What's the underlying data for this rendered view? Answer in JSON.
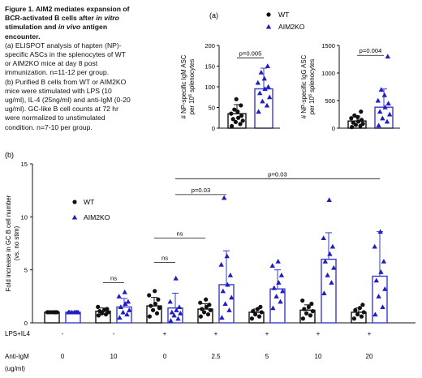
{
  "caption": {
    "title_lines": [
      "Figure 1. AIM2 mediates expansion of",
      "BCR-activated B cells after ",
      "in vitro",
      " stimulation and ",
      "in vivo",
      " antigen",
      "encounter."
    ],
    "lines": [
      "(a) ELISPOT analysis of hapten (NP)-",
      "specific ASCs in the splenocytes of WT",
      "or AIM2KO mice at day 8 post",
      "immunization. n=11-12 per group.",
      "(b) Purified B cells from WT or AIM2KO",
      "mice were stimulated with LPS (10",
      "ug/ml), IL-4 (25ng/ml) and anti-IgM (0-20",
      "ug/ml). GC-like B cell counts at 72 hr",
      "were normalized to unstimulated",
      "condition. n=7-10 per group."
    ]
  },
  "colors": {
    "wt": "#111111",
    "ko": "#1f1fbf",
    "bar": "#3a3acc"
  },
  "chart_data": [
    {
      "id": "a-igm",
      "type": "bar",
      "panel_label": "(a)",
      "ylabel_lines": [
        "# NP-specific IgM ASC",
        "per 10^6 splenocytes"
      ],
      "ylim": [
        0,
        200
      ],
      "yticks": [
        0,
        50,
        100,
        150,
        200
      ],
      "series": [
        {
          "name": "WT",
          "value": 35,
          "sd": 22,
          "points": [
            5,
            10,
            15,
            18,
            22,
            25,
            30,
            35,
            40,
            45,
            55,
            70
          ]
        },
        {
          "name": "AIM2KO",
          "value": 95,
          "sd": 50,
          "points": [
            40,
            55,
            65,
            75,
            85,
            95,
            100,
            110,
            120,
            135,
            150
          ]
        }
      ],
      "annotations": [
        {
          "text": "p=0.005",
          "between": [
            0,
            1
          ],
          "y": 170
        }
      ]
    },
    {
      "id": "a-igg",
      "type": "bar",
      "ylabel_lines": [
        "# NP-specific IgG ASC",
        "per 10^6 splenocytes"
      ],
      "ylim": [
        0,
        1500
      ],
      "yticks": [
        0,
        500,
        1000,
        1500
      ],
      "series": [
        {
          "name": "WT",
          "value": 130,
          "sd": 90,
          "points": [
            20,
            40,
            60,
            80,
            100,
            120,
            150,
            180,
            200,
            230,
            300
          ]
        },
        {
          "name": "AIM2KO",
          "value": 380,
          "sd": 330,
          "points": [
            50,
            120,
            180,
            250,
            300,
            380,
            450,
            500,
            600,
            700,
            1300
          ]
        }
      ],
      "annotations": [
        {
          "text": "p=0.004",
          "between": [
            0,
            1
          ],
          "y": 1320
        }
      ]
    },
    {
      "id": "b",
      "type": "bar",
      "panel_label": "(b)",
      "ylabel_lines": [
        "Fold increase in GC B cell number",
        "(vs. no stim)"
      ],
      "ylim": [
        0,
        15
      ],
      "yticks": [
        0,
        5,
        10,
        15
      ],
      "legend": [
        "WT",
        "AIM2KO"
      ],
      "conditions": {
        "row1_label": "LPS+IL4",
        "row2_label": "Anti-IgM",
        "row2_unit": "(ug/ml)",
        "lps": [
          "-",
          "-",
          "+",
          "+",
          "+",
          "+",
          "+"
        ],
        "antiigm": [
          "0",
          "10",
          "0",
          "2.5",
          "5",
          "10",
          "20"
        ]
      },
      "groups": [
        {
          "wt": {
            "value": 1.0,
            "sd": 0.05,
            "points": [
              1,
              1,
              1,
              1,
              1,
              1,
              1
            ]
          },
          "ko": {
            "value": 1.0,
            "sd": 0.05,
            "points": [
              1,
              1,
              1,
              1,
              1,
              1,
              1
            ]
          }
        },
        {
          "wt": {
            "value": 1.1,
            "sd": 0.3,
            "points": [
              0.7,
              0.8,
              0.9,
              1.0,
              1.1,
              1.2,
              1.3,
              1.5
            ]
          },
          "ko": {
            "value": 1.5,
            "sd": 0.8,
            "points": [
              0.5,
              0.8,
              1.0,
              1.2,
              1.5,
              1.8,
              2.0,
              2.5,
              2.9
            ]
          }
        },
        {
          "wt": {
            "value": 1.6,
            "sd": 0.8,
            "points": [
              0.6,
              0.9,
              1.2,
              1.4,
              1.6,
              1.8,
              2.2,
              2.6,
              3.0
            ]
          },
          "ko": {
            "value": 1.4,
            "sd": 1.4,
            "points": [
              0.2,
              0.4,
              0.7,
              0.9,
              1.0,
              1.2,
              1.5,
              2.0,
              4.2
            ]
          }
        },
        {
          "wt": {
            "value": 1.3,
            "sd": 0.5,
            "points": [
              0.6,
              0.8,
              1.0,
              1.2,
              1.3,
              1.5,
              1.7,
              1.9,
              2.2
            ]
          },
          "ko": {
            "value": 3.6,
            "sd": 3.2,
            "points": [
              0.5,
              1.2,
              1.8,
              2.4,
              3.0,
              3.6,
              4.5,
              5.5,
              6.3,
              11.8
            ]
          }
        },
        {
          "wt": {
            "value": 1.0,
            "sd": 0.3,
            "points": [
              0.4,
              0.6,
              0.8,
              1.0,
              1.1,
              1.3,
              1.5
            ]
          },
          "ko": {
            "value": 3.2,
            "sd": 1.8,
            "points": [
              1.4,
              2.0,
              2.5,
              3.0,
              3.3,
              3.8,
              4.5,
              5.4,
              5.8
            ]
          }
        },
        {
          "wt": {
            "value": 1.2,
            "sd": 0.5,
            "points": [
              0.4,
              0.7,
              0.9,
              1.1,
              1.3,
              1.5,
              1.8,
              2.1
            ]
          },
          "ko": {
            "value": 6.0,
            "sd": 2.5,
            "points": [
              2.8,
              3.8,
              4.5,
              5.2,
              5.8,
              6.5,
              7.2,
              8.0,
              11.6
            ]
          }
        },
        {
          "wt": {
            "value": 1.0,
            "sd": 0.4,
            "points": [
              0.4,
              0.6,
              0.8,
              1.0,
              1.2,
              1.4,
              1.7
            ]
          },
          "ko": {
            "value": 4.4,
            "sd": 4.2,
            "points": [
              0.8,
              1.5,
              2.5,
              3.2,
              4.0,
              4.8,
              5.8,
              7.2,
              8.6
            ]
          }
        }
      ],
      "annotations": [
        {
          "text": "ns",
          "from": "g1wt",
          "to": "g1ko",
          "y": 3.8
        },
        {
          "text": "ns",
          "from": "g2wt",
          "to": "g2ko",
          "y": 5.7
        },
        {
          "text": "ns",
          "from": "g2wt",
          "to": "g3wt",
          "y": 8.0
        },
        {
          "text": "p=0.03",
          "from": "g2ko",
          "to": "g3ko",
          "y": 12.1
        },
        {
          "text": "p=0.03",
          "from": "g2ko",
          "to": "g6ko",
          "y": 13.6
        }
      ]
    }
  ]
}
